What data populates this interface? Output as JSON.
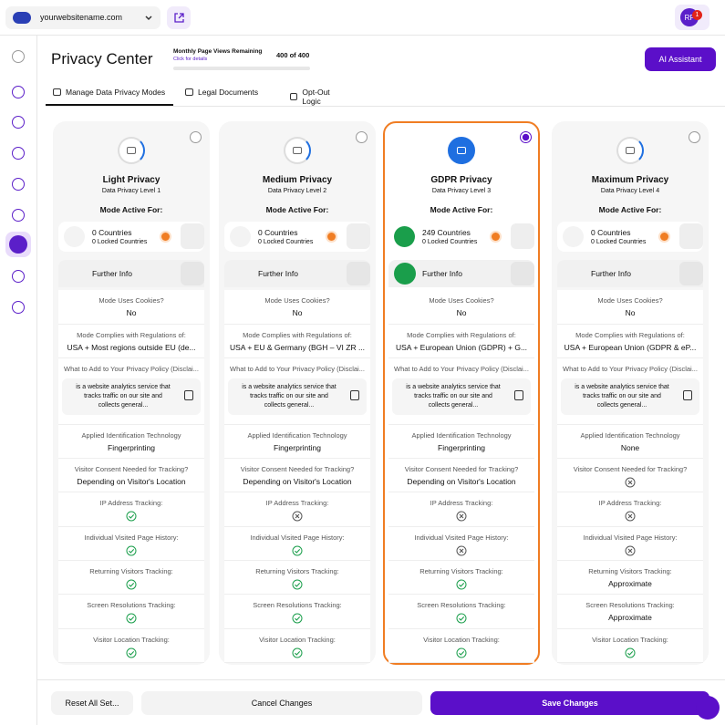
{
  "topbar": {
    "site": "yourwebsitename.com",
    "avatar": "RF",
    "badge": "1"
  },
  "header": {
    "title": "Privacy Center",
    "views_label": "Monthly Page Views Remaining",
    "views_link": "Click for details",
    "views_value": "400 of 400",
    "ai_button": "AI Assistant"
  },
  "tabs": [
    "Manage Data Privacy Modes",
    "Legal Documents",
    "Opt-Out Logic"
  ],
  "selected_card": 2,
  "cards": [
    {
      "name": "Light Privacy",
      "level": "Data Privacy Level 1",
      "active_label": "Mode Active For:",
      "countries": "0 Countries",
      "locked": "0 Locked Countries",
      "further_info": "Further Info",
      "rows": [
        {
          "label": "Mode Uses Cookies?",
          "value": "No"
        },
        {
          "label": "Mode Complies with Regulations of:",
          "value": "USA + Most regions outside EU (de..."
        },
        {
          "label": "What to Add to Your Privacy Policy (Disclai...",
          "text": "is a website analytics service that tracks traffic on our site and collects general..."
        },
        {
          "label": "Applied Identification Technology",
          "value": "Fingerprinting"
        },
        {
          "label": "Visitor Consent Needed for Tracking?",
          "value": "Depending on Visitor's Location"
        },
        {
          "label": "IP Address Tracking:",
          "status": "check"
        },
        {
          "label": "Individual Visited Page History:",
          "status": "check"
        },
        {
          "label": "Returning Visitors Tracking:",
          "status": "check"
        },
        {
          "label": "Screen Resolutions Tracking:",
          "status": "check"
        },
        {
          "label": "Visitor Location Tracking:",
          "status": "check"
        }
      ]
    },
    {
      "name": "Medium Privacy",
      "level": "Data Privacy Level 2",
      "active_label": "Mode Active For:",
      "countries": "0 Countries",
      "locked": "0 Locked Countries",
      "further_info": "Further Info",
      "rows": [
        {
          "label": "Mode Uses Cookies?",
          "value": "No"
        },
        {
          "label": "Mode Complies with Regulations of:",
          "value": "USA + EU & Germany (BGH – VI ZR ..."
        },
        {
          "label": "What to Add to Your Privacy Policy (Disclai...",
          "text": "is a website analytics service that tracks traffic on our site and collects general..."
        },
        {
          "label": "Applied Identification Technology",
          "value": "Fingerprinting"
        },
        {
          "label": "Visitor Consent Needed for Tracking?",
          "value": "Depending on Visitor's Location"
        },
        {
          "label": "IP Address Tracking:",
          "status": "cross"
        },
        {
          "label": "Individual Visited Page History:",
          "status": "check"
        },
        {
          "label": "Returning Visitors Tracking:",
          "status": "check"
        },
        {
          "label": "Screen Resolutions Tracking:",
          "status": "check"
        },
        {
          "label": "Visitor Location Tracking:",
          "status": "check"
        }
      ]
    },
    {
      "name": "GDPR Privacy",
      "level": "Data Privacy Level 3",
      "active_label": "Mode Active For:",
      "countries": "249 Countries",
      "locked": "0 Locked Countries",
      "further_info": "Further Info",
      "rows": [
        {
          "label": "Mode Uses Cookies?",
          "value": "No"
        },
        {
          "label": "Mode Complies with Regulations of:",
          "value": "USA + European Union (GDPR) + G..."
        },
        {
          "label": "What to Add to Your Privacy Policy (Disclai...",
          "text": "is a website analytics service that tracks traffic on our site and collects general..."
        },
        {
          "label": "Applied Identification Technology",
          "value": "Fingerprinting"
        },
        {
          "label": "Visitor Consent Needed for Tracking?",
          "value": "Depending on Visitor's Location"
        },
        {
          "label": "IP Address Tracking:",
          "status": "cross"
        },
        {
          "label": "Individual Visited Page History:",
          "status": "cross"
        },
        {
          "label": "Returning Visitors Tracking:",
          "status": "check"
        },
        {
          "label": "Screen Resolutions Tracking:",
          "status": "check"
        },
        {
          "label": "Visitor Location Tracking:",
          "status": "check"
        }
      ]
    },
    {
      "name": "Maximum Privacy",
      "level": "Data Privacy Level 4",
      "active_label": "Mode Active For:",
      "countries": "0 Countries",
      "locked": "0 Locked Countries",
      "further_info": "Further Info",
      "rows": [
        {
          "label": "Mode Uses Cookies?",
          "value": "No"
        },
        {
          "label": "Mode Complies with Regulations of:",
          "value": "USA + European Union (GDPR & eP..."
        },
        {
          "label": "What to Add to Your Privacy Policy (Disclai...",
          "text": "is a website analytics service that tracks traffic on our site and collects general..."
        },
        {
          "label": "Applied Identification Technology",
          "value": "None"
        },
        {
          "label": "Visitor Consent Needed for Tracking?",
          "status": "cross"
        },
        {
          "label": "IP Address Tracking:",
          "status": "cross"
        },
        {
          "label": "Individual Visited Page History:",
          "status": "cross"
        },
        {
          "label": "Returning Visitors Tracking:",
          "value": "Approximate"
        },
        {
          "label": "Screen Resolutions Tracking:",
          "value": "Approximate"
        },
        {
          "label": "Visitor Location Tracking:",
          "status": "check"
        }
      ]
    }
  ],
  "footer": {
    "reset": "Reset All Set...",
    "cancel": "Cancel Changes",
    "save": "Save Changes"
  }
}
